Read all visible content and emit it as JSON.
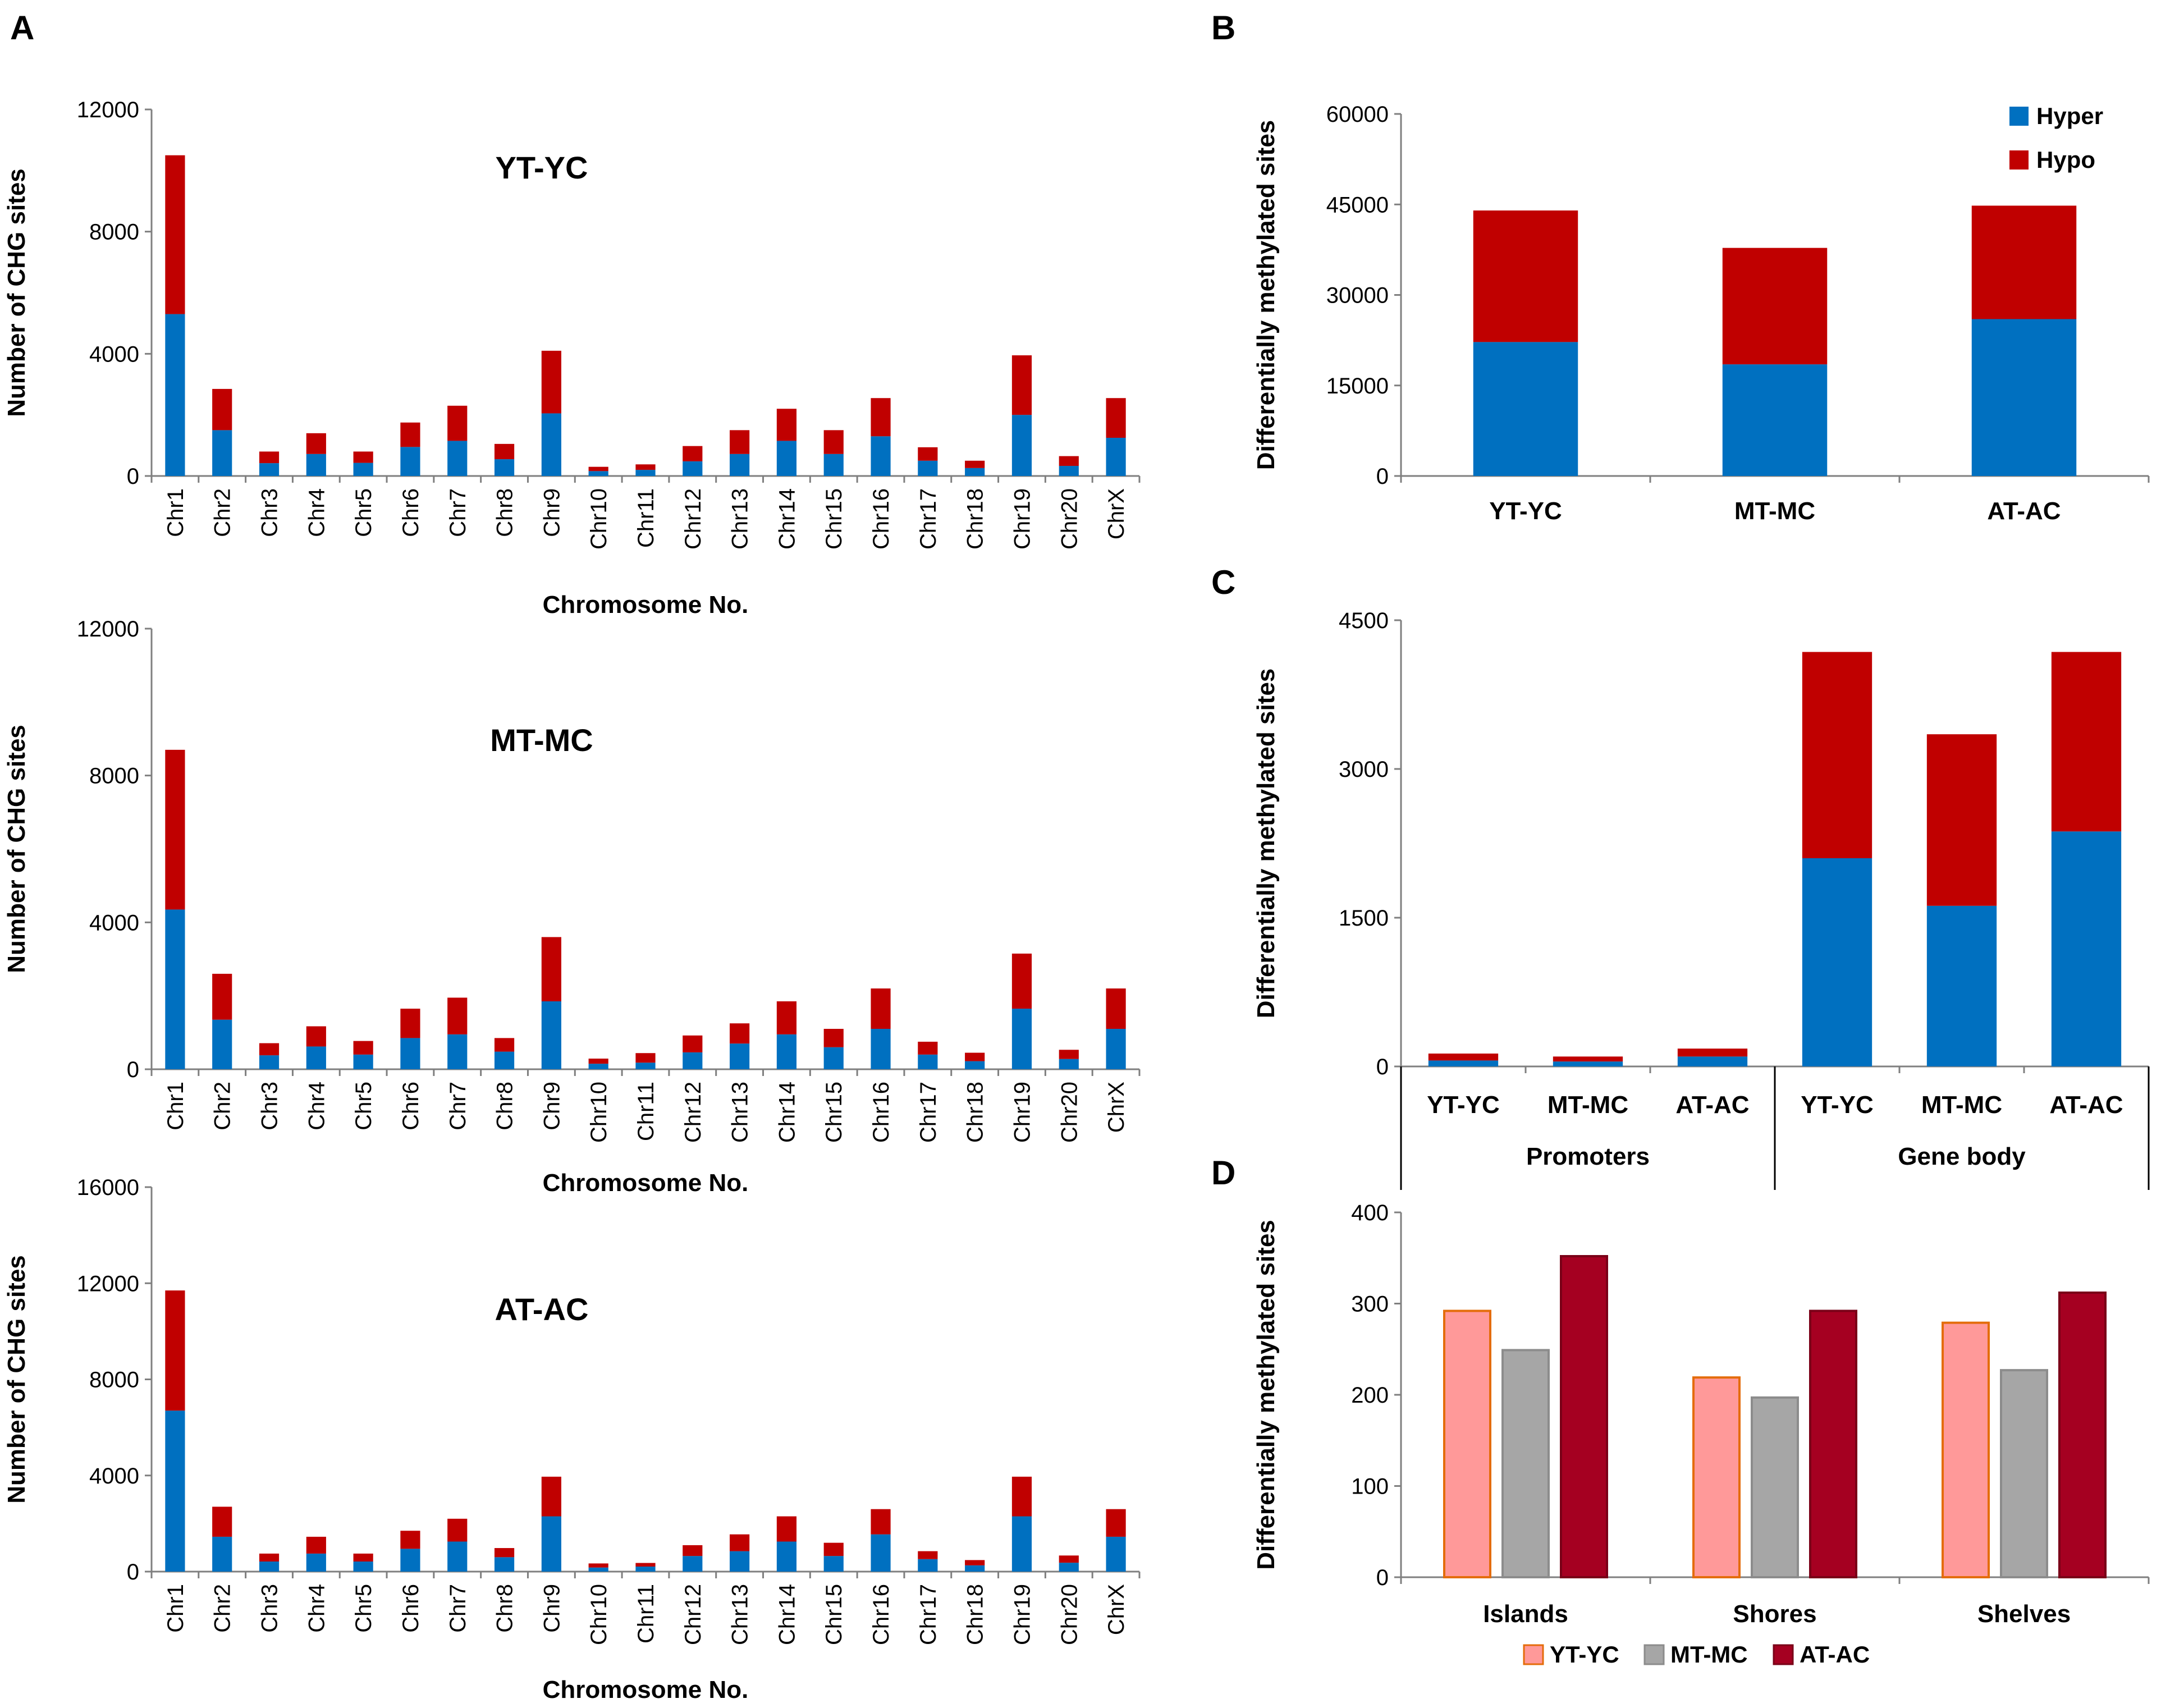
{
  "panel_letters": [
    "A",
    "B",
    "C",
    "D"
  ],
  "chart_data": [
    {
      "id": "A1",
      "type": "bar",
      "stacked": true,
      "title": "YT-YC",
      "xlabel": "Chromosome No.",
      "ylabel": "Number of CHG sites",
      "ylim": [
        0,
        12000
      ],
      "yticks": [
        0,
        4000,
        8000,
        12000
      ],
      "categories": [
        "Chr1",
        "Chr2",
        "Chr3",
        "Chr4",
        "Chr5",
        "Chr6",
        "Chr7",
        "Chr8",
        "Chr9",
        "Chr10",
        "Chr11",
        "Chr12",
        "Chr13",
        "Chr14",
        "Chr15",
        "Chr16",
        "Chr17",
        "Chr18",
        "Chr19",
        "Chr20",
        "ChrX"
      ],
      "series": [
        {
          "name": "Hyper",
          "color": "#0070C0",
          "values": [
            5300,
            1500,
            420,
            720,
            430,
            950,
            1150,
            550,
            2050,
            160,
            200,
            480,
            720,
            1150,
            720,
            1300,
            500,
            260,
            2000,
            330,
            1250
          ]
        },
        {
          "name": "Hypo",
          "color": "#C00000",
          "values": [
            5200,
            1350,
            380,
            680,
            370,
            800,
            1150,
            500,
            2050,
            140,
            180,
            500,
            780,
            1050,
            780,
            1250,
            440,
            240,
            1950,
            320,
            1300
          ]
        }
      ]
    },
    {
      "id": "A2",
      "type": "bar",
      "stacked": true,
      "title": "MT-MC",
      "xlabel": "Chromosome No.",
      "ylabel": "Number of CHG sites",
      "ylim": [
        0,
        12000
      ],
      "yticks": [
        0,
        4000,
        8000,
        12000
      ],
      "categories": [
        "Chr1",
        "Chr2",
        "Chr3",
        "Chr4",
        "Chr5",
        "Chr6",
        "Chr7",
        "Chr8",
        "Chr9",
        "Chr10",
        "Chr11",
        "Chr12",
        "Chr13",
        "Chr14",
        "Chr15",
        "Chr16",
        "Chr17",
        "Chr18",
        "Chr19",
        "Chr20",
        "ChrX"
      ],
      "series": [
        {
          "name": "Hyper",
          "color": "#0070C0",
          "values": [
            4350,
            1350,
            380,
            620,
            400,
            850,
            950,
            480,
            1850,
            150,
            180,
            460,
            700,
            950,
            600,
            1100,
            400,
            220,
            1650,
            280,
            1100
          ]
        },
        {
          "name": "Hypo",
          "color": "#C00000",
          "values": [
            4350,
            1250,
            330,
            550,
            370,
            800,
            1000,
            370,
            1750,
            140,
            260,
            460,
            550,
            900,
            500,
            1100,
            350,
            230,
            1500,
            250,
            1100
          ]
        }
      ]
    },
    {
      "id": "A3",
      "type": "bar",
      "stacked": true,
      "title": "AT-AC",
      "xlabel": "Chromosome No.",
      "ylabel": "Number of CHG sites",
      "ylim": [
        0,
        16000
      ],
      "yticks": [
        0,
        4000,
        8000,
        12000,
        16000
      ],
      "categories": [
        "Chr1",
        "Chr2",
        "Chr3",
        "Chr4",
        "Chr5",
        "Chr6",
        "Chr7",
        "Chr8",
        "Chr9",
        "Chr10",
        "Chr11",
        "Chr12",
        "Chr13",
        "Chr14",
        "Chr15",
        "Chr16",
        "Chr17",
        "Chr18",
        "Chr19",
        "Chr20",
        "ChrX"
      ],
      "series": [
        {
          "name": "Hyper",
          "color": "#0070C0",
          "values": [
            6700,
            1450,
            420,
            750,
            420,
            950,
            1250,
            600,
            2300,
            170,
            210,
            650,
            850,
            1250,
            650,
            1550,
            520,
            260,
            2300,
            370,
            1450
          ]
        },
        {
          "name": "Hypo",
          "color": "#C00000",
          "values": [
            5000,
            1250,
            330,
            700,
            330,
            750,
            950,
            380,
            1650,
            170,
            150,
            450,
            700,
            1050,
            550,
            1050,
            330,
            220,
            1650,
            300,
            1150
          ]
        }
      ]
    },
    {
      "id": "B",
      "type": "bar",
      "stacked": true,
      "title": "",
      "xlabel": "",
      "ylabel": "Differentially methylated sites",
      "ylim": [
        0,
        60000
      ],
      "yticks": [
        0,
        15000,
        30000,
        45000,
        60000
      ],
      "categories": [
        "YT-YC",
        "MT-MC",
        "AT-AC"
      ],
      "series": [
        {
          "name": "Hyper",
          "color": "#0070C0",
          "values": [
            22200,
            18500,
            26000
          ]
        },
        {
          "name": "Hypo",
          "color": "#C00000",
          "values": [
            21800,
            19300,
            18800
          ]
        }
      ],
      "legend": {
        "position": "top-right",
        "entries": [
          "Hyper",
          "Hypo"
        ]
      }
    },
    {
      "id": "C",
      "type": "bar",
      "stacked": true,
      "title": "",
      "xlabel": "",
      "ylabel": "Differentially methylated sites",
      "ylim": [
        0,
        4500
      ],
      "yticks": [
        0,
        1500,
        3000,
        4500
      ],
      "categories": [
        "YT-YC",
        "MT-MC",
        "AT-AC",
        "YT-YC",
        "MT-MC",
        "AT-AC"
      ],
      "groups": [
        {
          "label": "Promoters"
        },
        {
          "label": "Gene body"
        }
      ],
      "series": [
        {
          "name": "Hyper",
          "color": "#0070C0",
          "values": [
            60,
            50,
            100,
            2100,
            1620,
            2370
          ]
        },
        {
          "name": "Hypo",
          "color": "#C00000",
          "values": [
            70,
            50,
            80,
            2080,
            1730,
            1810
          ]
        }
      ]
    },
    {
      "id": "D",
      "type": "bar",
      "stacked": false,
      "title": "",
      "xlabel": "",
      "ylabel": "Differentially methylated sites",
      "ylim": [
        0,
        400
      ],
      "yticks": [
        0,
        100,
        200,
        300,
        400
      ],
      "categories": [
        "Islands",
        "Shores",
        "Shelves"
      ],
      "series": [
        {
          "name": "YT-YC",
          "color": "#FF9999",
          "stroke": "#E46C0A",
          "values": [
            292,
            219,
            279
          ]
        },
        {
          "name": "MT-MC",
          "color": "#A6A6A6",
          "stroke": "#8C8C8C",
          "values": [
            249,
            197,
            227
          ]
        },
        {
          "name": "AT-AC",
          "color": "#A50021",
          "stroke": "#7A0018",
          "values": [
            352,
            292,
            312
          ]
        }
      ],
      "legend": {
        "position": "bottom",
        "entries": [
          "YT-YC",
          "MT-MC",
          "AT-AC"
        ]
      }
    }
  ]
}
